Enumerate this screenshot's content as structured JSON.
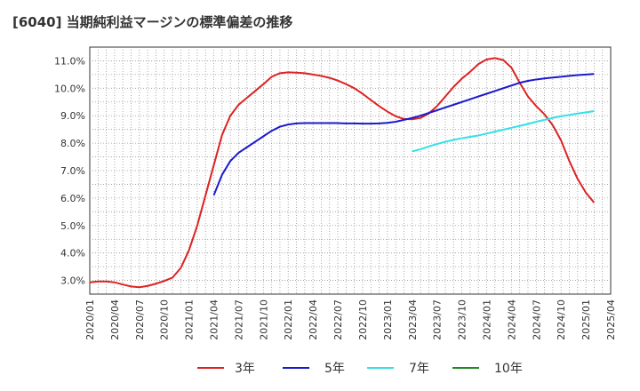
{
  "chart_data": {
    "type": "line",
    "title": "[6040]  当期純利益マージンの標準偏差の推移",
    "xlabel": "",
    "ylabel": "",
    "ylim": [
      2.5,
      11.5
    ],
    "yticks": [
      "3.0%",
      "4.0%",
      "5.0%",
      "6.0%",
      "7.0%",
      "8.0%",
      "9.0%",
      "10.0%",
      "11.0%"
    ],
    "xticks": [
      "2020/01",
      "2020/04",
      "2020/07",
      "2020/10",
      "2021/01",
      "2021/04",
      "2021/07",
      "2021/10",
      "2022/01",
      "2022/04",
      "2022/07",
      "2022/10",
      "2023/01",
      "2023/04",
      "2023/07",
      "2023/10",
      "2024/01",
      "2024/04",
      "2024/07",
      "2024/10",
      "2025/01",
      "2025/04"
    ],
    "grid": true,
    "legend_position": "bottom",
    "series": [
      {
        "name": "3年",
        "color": "#dd2222",
        "points": [
          [
            "2020/01",
            2.93
          ],
          [
            "2020/02",
            2.96
          ],
          [
            "2020/03",
            2.96
          ],
          [
            "2020/04",
            2.93
          ],
          [
            "2020/05",
            2.85
          ],
          [
            "2020/06",
            2.78
          ],
          [
            "2020/07",
            2.75
          ],
          [
            "2020/08",
            2.8
          ],
          [
            "2020/09",
            2.88
          ],
          [
            "2020/10",
            2.98
          ],
          [
            "2020/11",
            3.1
          ],
          [
            "2020/12",
            3.45
          ],
          [
            "2021/01",
            4.1
          ],
          [
            "2021/02",
            5.0
          ],
          [
            "2021/03",
            6.1
          ],
          [
            "2021/04",
            7.2
          ],
          [
            "2021/05",
            8.3
          ],
          [
            "2021/06",
            9.0
          ],
          [
            "2021/07",
            9.4
          ],
          [
            "2021/08",
            9.65
          ],
          [
            "2021/09",
            9.9
          ],
          [
            "2021/10",
            10.15
          ],
          [
            "2021/11",
            10.42
          ],
          [
            "2021/12",
            10.55
          ],
          [
            "2022/01",
            10.58
          ],
          [
            "2022/02",
            10.57
          ],
          [
            "2022/03",
            10.55
          ],
          [
            "2022/04",
            10.5
          ],
          [
            "2022/05",
            10.45
          ],
          [
            "2022/06",
            10.38
          ],
          [
            "2022/07",
            10.28
          ],
          [
            "2022/08",
            10.15
          ],
          [
            "2022/09",
            10.0
          ],
          [
            "2022/10",
            9.8
          ],
          [
            "2022/11",
            9.57
          ],
          [
            "2022/12",
            9.35
          ],
          [
            "2023/01",
            9.15
          ],
          [
            "2023/02",
            8.98
          ],
          [
            "2023/03",
            8.88
          ],
          [
            "2023/04",
            8.87
          ],
          [
            "2023/05",
            8.92
          ],
          [
            "2023/06",
            9.08
          ],
          [
            "2023/07",
            9.35
          ],
          [
            "2023/08",
            9.7
          ],
          [
            "2023/09",
            10.05
          ],
          [
            "2023/10",
            10.35
          ],
          [
            "2023/11",
            10.6
          ],
          [
            "2023/12",
            10.88
          ],
          [
            "2024/01",
            11.05
          ],
          [
            "2024/02",
            11.1
          ],
          [
            "2024/03",
            11.03
          ],
          [
            "2024/04",
            10.75
          ],
          [
            "2024/05",
            10.2
          ],
          [
            "2024/06",
            9.7
          ],
          [
            "2024/07",
            9.35
          ],
          [
            "2024/08",
            9.05
          ],
          [
            "2024/09",
            8.65
          ],
          [
            "2024/10",
            8.1
          ],
          [
            "2024/11",
            7.35
          ],
          [
            "2024/12",
            6.7
          ],
          [
            "2025/01",
            6.2
          ],
          [
            "2025/02",
            5.83
          ]
        ]
      },
      {
        "name": "5年",
        "color": "#1a1acc",
        "points": [
          [
            "2021/04",
            6.1
          ],
          [
            "2021/05",
            6.85
          ],
          [
            "2021/06",
            7.35
          ],
          [
            "2021/07",
            7.65
          ],
          [
            "2021/08",
            7.85
          ],
          [
            "2021/09",
            8.05
          ],
          [
            "2021/10",
            8.25
          ],
          [
            "2021/11",
            8.45
          ],
          [
            "2021/12",
            8.6
          ],
          [
            "2022/01",
            8.68
          ],
          [
            "2022/02",
            8.72
          ],
          [
            "2022/03",
            8.73
          ],
          [
            "2022/04",
            8.73
          ],
          [
            "2022/05",
            8.73
          ],
          [
            "2022/06",
            8.73
          ],
          [
            "2022/07",
            8.73
          ],
          [
            "2022/08",
            8.72
          ],
          [
            "2022/09",
            8.72
          ],
          [
            "2022/10",
            8.71
          ],
          [
            "2022/11",
            8.71
          ],
          [
            "2022/12",
            8.72
          ],
          [
            "2023/01",
            8.74
          ],
          [
            "2023/02",
            8.78
          ],
          [
            "2023/03",
            8.85
          ],
          [
            "2023/04",
            8.92
          ],
          [
            "2023/05",
            9.0
          ],
          [
            "2023/06",
            9.1
          ],
          [
            "2023/07",
            9.2
          ],
          [
            "2023/08",
            9.3
          ],
          [
            "2023/09",
            9.4
          ],
          [
            "2023/10",
            9.5
          ],
          [
            "2023/11",
            9.6
          ],
          [
            "2023/12",
            9.7
          ],
          [
            "2024/01",
            9.8
          ],
          [
            "2024/02",
            9.9
          ],
          [
            "2024/03",
            10.0
          ],
          [
            "2024/04",
            10.1
          ],
          [
            "2024/05",
            10.2
          ],
          [
            "2024/06",
            10.27
          ],
          [
            "2024/07",
            10.32
          ],
          [
            "2024/08",
            10.36
          ],
          [
            "2024/09",
            10.39
          ],
          [
            "2024/10",
            10.42
          ],
          [
            "2024/11",
            10.45
          ],
          [
            "2024/12",
            10.48
          ],
          [
            "2025/01",
            10.5
          ],
          [
            "2025/02",
            10.52
          ]
        ]
      },
      {
        "name": "7年",
        "color": "#33e0e8",
        "points": [
          [
            "2023/04",
            7.7
          ],
          [
            "2023/05",
            7.78
          ],
          [
            "2023/06",
            7.88
          ],
          [
            "2023/07",
            7.97
          ],
          [
            "2023/08",
            8.05
          ],
          [
            "2023/09",
            8.12
          ],
          [
            "2023/10",
            8.18
          ],
          [
            "2023/11",
            8.23
          ],
          [
            "2023/12",
            8.28
          ],
          [
            "2024/01",
            8.35
          ],
          [
            "2024/02",
            8.42
          ],
          [
            "2024/03",
            8.49
          ],
          [
            "2024/04",
            8.56
          ],
          [
            "2024/05",
            8.63
          ],
          [
            "2024/06",
            8.7
          ],
          [
            "2024/07",
            8.78
          ],
          [
            "2024/08",
            8.85
          ],
          [
            "2024/09",
            8.92
          ],
          [
            "2024/10",
            8.98
          ],
          [
            "2024/11",
            9.03
          ],
          [
            "2024/12",
            9.08
          ],
          [
            "2025/01",
            9.12
          ],
          [
            "2025/02",
            9.17
          ]
        ]
      },
      {
        "name": "10年",
        "color": "#228822",
        "points": []
      }
    ]
  }
}
